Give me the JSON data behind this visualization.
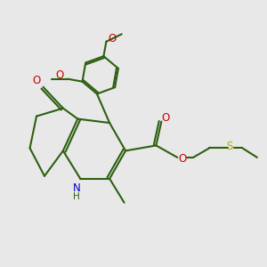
{
  "bg_color": "#e8e8e8",
  "bond_color": "#2d6010",
  "o_color": "#cc0000",
  "n_color": "#0000cc",
  "s_color": "#aaaa00",
  "line_width": 1.5,
  "fig_size": [
    3.0,
    3.0
  ],
  "dpi": 100,
  "xlim": [
    0,
    10
  ],
  "ylim": [
    0,
    10
  ]
}
